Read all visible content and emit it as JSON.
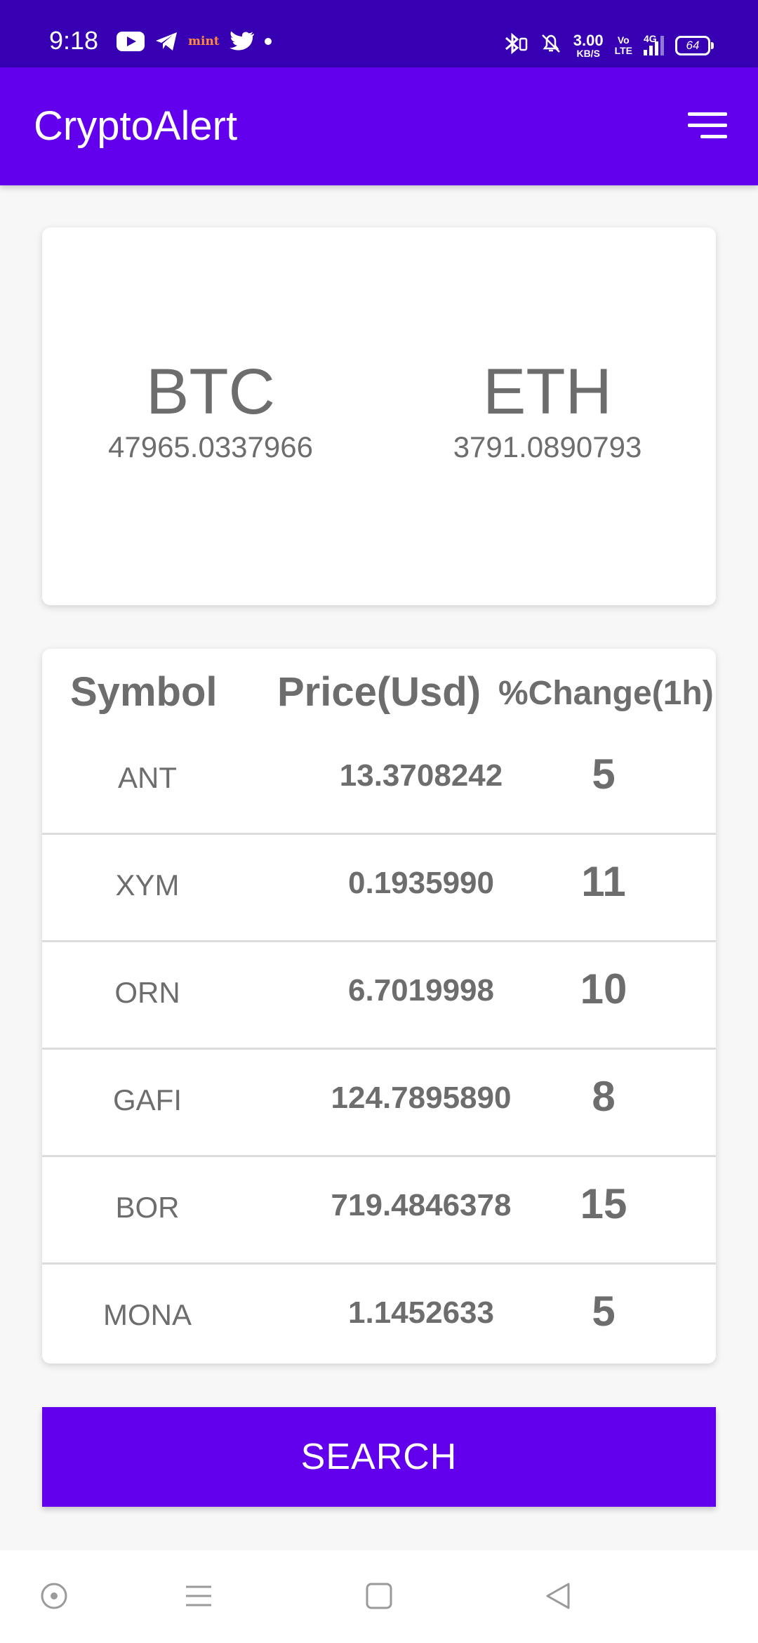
{
  "status_bar": {
    "time": "9:18",
    "left_icons": [
      "youtube-icon",
      "telegram-icon",
      "mint-icon",
      "twitter-icon",
      "dot-icon"
    ],
    "mint_label": "mint",
    "net_speed_value": "3.00",
    "net_speed_unit": "KB/S",
    "volte_top": "Vo",
    "volte_bottom": "LTE",
    "network_label": "4G",
    "battery_level": "64",
    "colors": {
      "background": "#3700b3",
      "foreground": "#ffffff"
    }
  },
  "app_bar": {
    "title": "CryptoAlert",
    "menu_icon": "hamburger-menu-icon",
    "color": "#6200ee"
  },
  "featured": [
    {
      "symbol": "BTC",
      "price": "47965.0337966"
    },
    {
      "symbol": "ETH",
      "price": "3791.0890793"
    }
  ],
  "table": {
    "headers": {
      "symbol": "Symbol",
      "price": "Price(Usd)",
      "change": "%Change(1h)"
    },
    "rows": [
      {
        "symbol": "ANT",
        "price": "13.3708242",
        "change": "5"
      },
      {
        "symbol": "XYM",
        "price": "0.1935990",
        "change": "11"
      },
      {
        "symbol": "ORN",
        "price": "6.7019998",
        "change": "10"
      },
      {
        "symbol": "GAFI",
        "price": "124.7895890",
        "change": "8"
      },
      {
        "symbol": "BOR",
        "price": "719.4846378",
        "change": "15"
      },
      {
        "symbol": "MONA",
        "price": "1.1452633",
        "change": "5"
      }
    ]
  },
  "search_button": {
    "label": "SEARCH",
    "color": "#6200ee"
  },
  "nav_bar": {
    "items": [
      "assistant-circle-icon",
      "recents-menu-icon",
      "home-square-icon",
      "back-triangle-icon"
    ]
  }
}
